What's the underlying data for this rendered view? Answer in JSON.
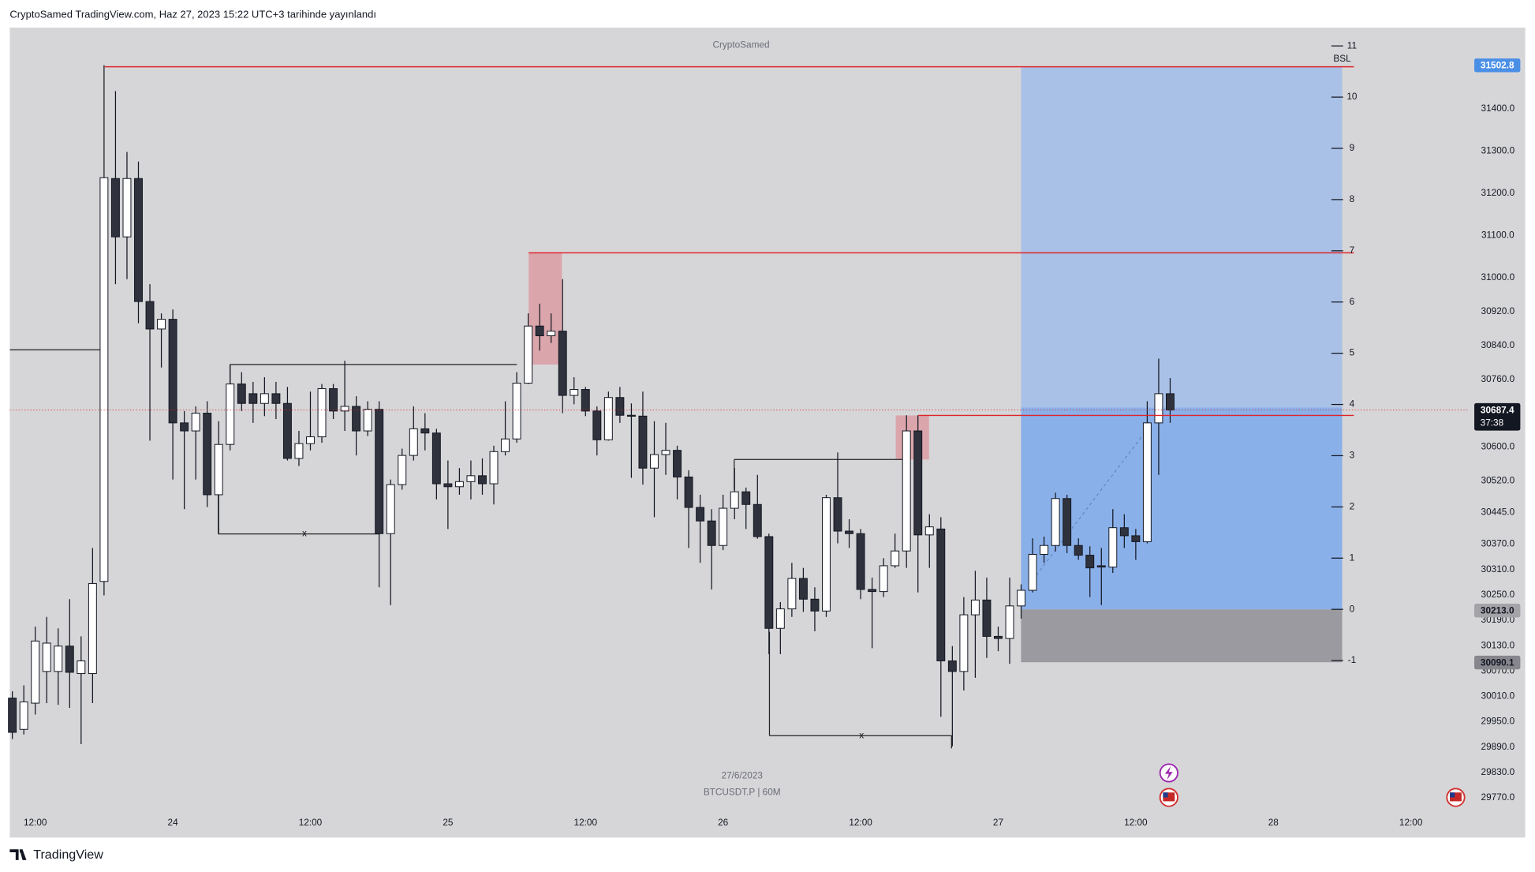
{
  "header": {
    "title": "CryptoSamed TradingView.com, Haz 27, 2023 15:22 UTC+3 tarihinde yayınlandı"
  },
  "chart_data": {
    "type": "candlestick",
    "watermark": "CryptoSamed",
    "date_label": "27/6/2023",
    "symbol": "BTCUSDT.P | 60M",
    "up_color": "#ffffff",
    "down_color": "#2f323c",
    "categories": [
      null,
      null,
      "12:00",
      null,
      null,
      null,
      null,
      null,
      null,
      null,
      null,
      null,
      null,
      null,
      "24",
      null,
      null,
      null,
      null,
      null,
      null,
      null,
      null,
      null,
      null,
      null,
      "12:00",
      null,
      null,
      null,
      null,
      null,
      null,
      null,
      null,
      null,
      null,
      null,
      "25",
      null,
      null,
      null,
      null,
      null,
      null,
      null,
      null,
      null,
      null,
      null,
      "12:00",
      null,
      null,
      null,
      null,
      null,
      null,
      null,
      null,
      null,
      null,
      null,
      "26",
      null,
      null,
      null,
      null,
      null,
      null,
      null,
      null,
      null,
      null,
      null,
      "12:00",
      null,
      null,
      null,
      null,
      null,
      null,
      null,
      null,
      null,
      null,
      null,
      "27",
      null,
      null,
      null,
      null,
      null,
      null,
      null,
      null,
      null,
      null,
      null,
      "12:00",
      null,
      null,
      null,
      null,
      null,
      null,
      null,
      null,
      null,
      null,
      null,
      "28",
      null,
      null,
      null,
      null,
      null,
      null,
      null,
      null,
      null,
      null,
      null,
      "12:00",
      null,
      null,
      null,
      null,
      null
    ],
    "open": [
      30006,
      29932,
      29994,
      30069,
      30069,
      30129,
      30064,
      30064,
      30282,
      31235,
      31097,
      31235,
      30944,
      30879,
      30902,
      30657,
      30638,
      30680,
      30487,
      30606,
      30749,
      30726,
      30703,
      30726,
      30703,
      30573,
      30608,
      30624,
      30738,
      30685,
      30696,
      30638,
      30689,
      30395,
      30511,
      30580,
      30643,
      30633,
      30513,
      30506,
      30518,
      30532,
      30513,
      30589,
      30619,
      30751,
      30886,
      30863,
      30874,
      30722,
      30736,
      30685,
      30617,
      30717,
      30675,
      30673,
      30550,
      30582,
      30592,
      30529,
      30457,
      30425,
      30367,
      30455,
      30494,
      30464,
      30388,
      30171,
      30217,
      30289,
      30240,
      30212,
      30480,
      30401,
      30395,
      30263,
      30258,
      30319,
      30354,
      30638,
      30392,
      30406,
      30094,
      30069,
      30203,
      30238,
      30152,
      30147,
      30224,
      30261,
      30346,
      30367,
      30478,
      30367,
      30344,
      30319,
      30316,
      30409,
      30390,
      30376,
      30657,
      30726,
      null,
      null,
      null,
      null,
      null,
      null,
      null,
      null,
      null,
      null,
      null,
      null,
      null,
      null,
      null,
      null,
      null,
      null,
      null,
      null,
      null,
      null,
      null,
      null,
      null,
      null
    ],
    "high": [
      30022,
      30036,
      30175,
      30198,
      30171,
      30240,
      30152,
      30361,
      31503,
      31442,
      31298,
      31275,
      30985,
      30916,
      30925,
      30685,
      30696,
      30708,
      30661,
      30795,
      30777,
      30754,
      30765,
      30754,
      30742,
      30638,
      30731,
      30749,
      30749,
      30804,
      30720,
      30708,
      30708,
      30523,
      30596,
      30696,
      30680,
      30643,
      30568,
      30550,
      30568,
      30573,
      30603,
      30708,
      30777,
      30916,
      30939,
      30916,
      30997,
      30765,
      30742,
      30696,
      30731,
      30742,
      30703,
      30731,
      30661,
      30657,
      30603,
      30545,
      30487,
      30453,
      30487,
      30550,
      30504,
      30534,
      30395,
      30233,
      30326,
      30314,
      30268,
      30487,
      30587,
      30429,
      30406,
      30291,
      30337,
      30395,
      30675,
      30675,
      30441,
      30434,
      30129,
      30245,
      30307,
      30291,
      30175,
      30291,
      30275,
      30384,
      30388,
      30492,
      30487,
      30384,
      30365,
      30361,
      30453,
      30441,
      30406,
      30708,
      30809,
      30763,
      null,
      null,
      null,
      null,
      null,
      null,
      null,
      null,
      null,
      null,
      null,
      null,
      null,
      null,
      null,
      null,
      null,
      null,
      null,
      null,
      null,
      null,
      null,
      null,
      null,
      null
    ],
    "low": [
      29909,
      29920,
      29967,
      29994,
      29990,
      29983,
      29897,
      29994,
      30249,
      30985,
      30997,
      30893,
      30615,
      30788,
      30523,
      30453,
      30523,
      30458,
      30395,
      30592,
      30685,
      30657,
      30673,
      30666,
      30568,
      30555,
      30592,
      30610,
      30666,
      30638,
      30580,
      30626,
      30268,
      30226,
      30499,
      30568,
      30592,
      30476,
      30406,
      30487,
      30476,
      30487,
      30464,
      30580,
      30610,
      30749,
      30828,
      30846,
      30680,
      30701,
      30673,
      30580,
      30615,
      30657,
      30527,
      30511,
      30434,
      30534,
      30476,
      30361,
      30326,
      30263,
      30356,
      30429,
      30406,
      30383,
      30110,
      30110,
      30198,
      30210,
      30164,
      30198,
      30372,
      30361,
      30240,
      30124,
      30245,
      30314,
      30314,
      30256,
      30314,
      29962,
      29892,
      30024,
      30054,
      30101,
      30117,
      30087,
      30194,
      30256,
      30326,
      30353,
      30349,
      30333,
      30245,
      30226,
      30302,
      30361,
      30333,
      30372,
      30534,
      30657,
      null,
      null,
      null,
      null,
      null,
      null,
      null,
      null,
      null,
      null,
      null,
      null,
      null,
      null,
      null,
      null,
      null,
      null,
      null,
      null,
      null,
      null,
      null,
      null,
      null,
      null
    ],
    "close": [
      29925,
      29997,
      30141,
      30136,
      30129,
      30067,
      30094,
      30277,
      31237,
      31097,
      31235,
      30944,
      30879,
      30902,
      30657,
      30638,
      30680,
      30487,
      30606,
      30749,
      30703,
      30703,
      30726,
      30703,
      30573,
      30608,
      30624,
      30738,
      30685,
      30696,
      30638,
      30689,
      30395,
      30511,
      30580,
      30643,
      30633,
      30513,
      30506,
      30518,
      30532,
      30513,
      30589,
      30619,
      30751,
      30886,
      30863,
      30874,
      30722,
      30736,
      30685,
      30617,
      30717,
      30675,
      30673,
      30550,
      30582,
      30592,
      30529,
      30457,
      30425,
      30367,
      30455,
      30494,
      30464,
      30388,
      30171,
      30217,
      30289,
      30240,
      30212,
      30480,
      30401,
      30395,
      30263,
      30258,
      30319,
      30354,
      30638,
      30392,
      30411,
      30094,
      30069,
      30203,
      30238,
      30152,
      30147,
      30224,
      30261,
      30346,
      30367,
      30478,
      30367,
      30344,
      30314,
      30316,
      30409,
      30390,
      30376,
      30657,
      30726,
      30687.4,
      null,
      null,
      null,
      null,
      null,
      null,
      null,
      null,
      null,
      null,
      null,
      null,
      null,
      null,
      null,
      null,
      null,
      null,
      null,
      null,
      null,
      null,
      null,
      null,
      null,
      null
    ],
    "ylim": [
      29741,
      31592
    ],
    "yticks": [
      {
        "value": 31400,
        "label": "31400.0"
      },
      {
        "value": 31300,
        "label": "31300.0"
      },
      {
        "value": 31200,
        "label": "31200.0"
      },
      {
        "value": 31100,
        "label": "31100.0"
      },
      {
        "value": 31000,
        "label": "31000.0"
      },
      {
        "value": 30920,
        "label": "30920.0"
      },
      {
        "value": 30840,
        "label": "30840.0"
      },
      {
        "value": 30760,
        "label": "30760.0"
      },
      {
        "value": 30600,
        "label": "30600.0"
      },
      {
        "value": 30520,
        "label": "30520.0"
      },
      {
        "value": 30445,
        "label": "30445.0"
      },
      {
        "value": 30370,
        "label": "30370.0"
      },
      {
        "value": 30310,
        "label": "30310.0"
      },
      {
        "value": 30250,
        "label": "30250.0"
      },
      {
        "value": 30190,
        "label": "30190.0"
      },
      {
        "value": 30130,
        "label": "30130.0"
      },
      {
        "value": 30070,
        "label": "30070.0"
      },
      {
        "value": 30010,
        "label": "30010.0"
      },
      {
        "value": 29950,
        "label": "29950.0"
      },
      {
        "value": 29890,
        "label": "29890.0"
      },
      {
        "value": 29830,
        "label": "29830.0"
      },
      {
        "value": 29770,
        "label": "29770.0"
      }
    ],
    "price_tags": [
      {
        "price": 31502.8,
        "color": "#4a8fe6",
        "text_color": "#ffffff"
      },
      {
        "price": 30687.4,
        "countdown": "37:38",
        "color": "#131722",
        "text_color": "#ffffff"
      },
      {
        "price": {
          "value": 30213,
          "label": "30213.0"
        },
        "color": "#a3a3a8",
        "text_color": "#131722"
      },
      {
        "price": 30090.1,
        "color": "#86868c",
        "text_color": "#131722"
      }
    ],
    "levels": {
      "ticks": [
        11,
        10,
        9,
        8,
        7,
        6,
        5,
        4,
        3,
        2,
        1,
        0,
        -1
      ],
      "name": "BSL"
    }
  },
  "footer": {
    "brand": "TradingView"
  }
}
